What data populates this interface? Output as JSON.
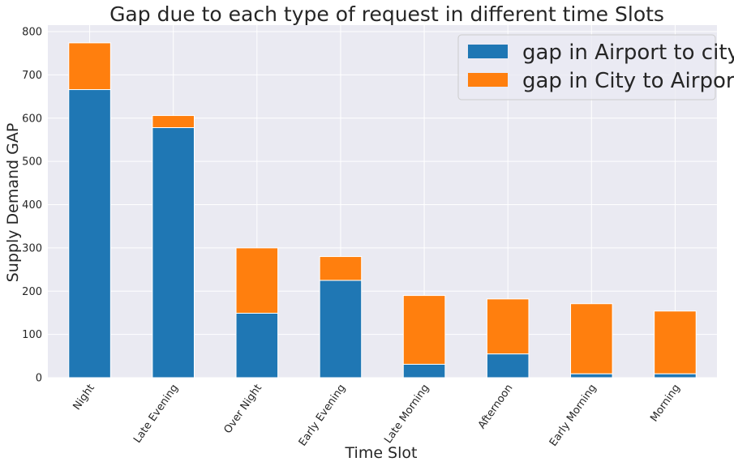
{
  "chart_data": {
    "type": "bar",
    "stacked": true,
    "title": "Gap due to each type of request in different time Slots",
    "xlabel": "Time Slot",
    "ylabel": "Supply Demand GAP",
    "categories": [
      "Night",
      "Late Evening",
      "Over Night",
      "Early Evening",
      "Late Morning",
      "Afternoon",
      "Early Morning",
      "Morning"
    ],
    "series": [
      {
        "name": "gap in Airport to city",
        "color": "#1f77b4",
        "values": [
          666,
          578,
          149,
          225,
          31,
          55,
          9,
          9
        ]
      },
      {
        "name": "gap in City to Airport",
        "color": "#ff7f0e",
        "values": [
          108,
          28,
          151,
          55,
          159,
          127,
          162,
          145
        ]
      }
    ],
    "ylim": [
      0,
      815
    ],
    "yticks": [
      0,
      100,
      200,
      300,
      400,
      500,
      600,
      700,
      800
    ],
    "grid": true,
    "legend_position": "top-right",
    "colors": {
      "plot_background": "#eaeaf2",
      "grid": "#ffffff",
      "text": "#262626"
    }
  }
}
